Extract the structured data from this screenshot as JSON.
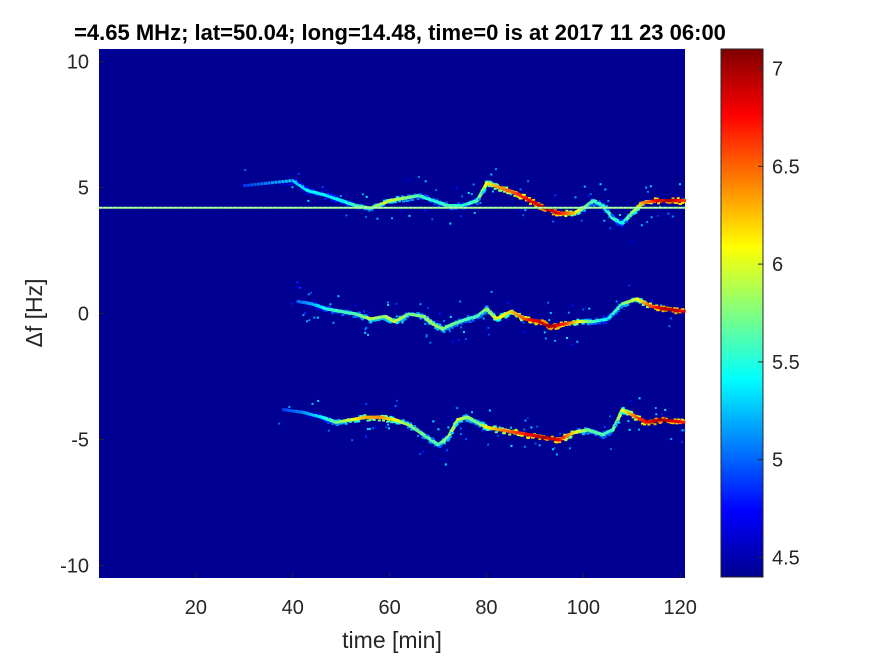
{
  "chart_data": {
    "type": "heatmap",
    "title": "=4.65 MHz;  lat=50.04; long=14.48, time=0 is at 2017 11 23 06:00",
    "xlabel": "time [min]",
    "ylabel": "Δf [Hz]",
    "xlim": [
      0,
      121
    ],
    "ylim": [
      -10.5,
      10.5
    ],
    "x_ticks": [
      {
        "value": 20,
        "label": "20"
      },
      {
        "value": 40,
        "label": "40"
      },
      {
        "value": 60,
        "label": "60"
      },
      {
        "value": 80,
        "label": "80"
      },
      {
        "value": 100,
        "label": "100"
      },
      {
        "value": 120,
        "label": "120"
      }
    ],
    "y_ticks": [
      {
        "value": 10,
        "label": "10"
      },
      {
        "value": 5,
        "label": "5"
      },
      {
        "value": 0,
        "label": "0"
      },
      {
        "value": -5,
        "label": "-5"
      },
      {
        "value": -10,
        "label": "-10"
      }
    ],
    "colorbar": {
      "colormap": "jet",
      "range": [
        4.4,
        7.1
      ],
      "ticks": [
        {
          "value": 4.5,
          "label": "4.5"
        },
        {
          "value": 5,
          "label": "5"
        },
        {
          "value": 5.5,
          "label": "5.5"
        },
        {
          "value": 6,
          "label": "6"
        },
        {
          "value": 6.5,
          "label": "6.5"
        },
        {
          "value": 7,
          "label": "7"
        }
      ]
    },
    "background_value": 4.45,
    "carrier_line": {
      "y": 4.2,
      "x_start": 0,
      "x_end": 121,
      "value": 5.8
    },
    "traces": [
      {
        "name": "upper",
        "points": [
          [
            30,
            5.1
          ],
          [
            40,
            5.3
          ],
          [
            43,
            4.9
          ],
          [
            47,
            4.7
          ],
          [
            50,
            4.5
          ],
          [
            53,
            4.3
          ],
          [
            56,
            4.2
          ],
          [
            60,
            4.5
          ],
          [
            63,
            4.6
          ],
          [
            66,
            4.7
          ],
          [
            69,
            4.5
          ],
          [
            72,
            4.3
          ],
          [
            75,
            4.3
          ],
          [
            78,
            4.5
          ],
          [
            80,
            5.2
          ],
          [
            83,
            5.0
          ],
          [
            86,
            4.8
          ],
          [
            89,
            4.5
          ],
          [
            92,
            4.2
          ],
          [
            95,
            4.0
          ],
          [
            98,
            4.0
          ],
          [
            100,
            4.2
          ],
          [
            102,
            4.5
          ],
          [
            104,
            4.3
          ],
          [
            106,
            3.8
          ],
          [
            108,
            3.6
          ],
          [
            110,
            4.0
          ],
          [
            112,
            4.4
          ],
          [
            115,
            4.5
          ],
          [
            118,
            4.5
          ],
          [
            121,
            4.5
          ]
        ],
        "intensity": [
          4.9,
          5.3,
          5.4,
          5.4,
          5.4,
          5.6,
          5.7,
          6.0,
          5.8,
          5.6,
          5.5,
          5.6,
          5.5,
          5.6,
          6.1,
          6.4,
          6.6,
          6.8,
          7.0,
          6.8,
          6.3,
          5.8,
          5.6,
          5.5,
          5.6,
          5.4,
          5.8,
          6.3,
          6.8,
          7.0,
          6.6
        ]
      },
      {
        "name": "middle",
        "points": [
          [
            41,
            0.5
          ],
          [
            44,
            0.4
          ],
          [
            47,
            0.2
          ],
          [
            50,
            0.1
          ],
          [
            53,
            0.0
          ],
          [
            56,
            -0.2
          ],
          [
            59,
            -0.1
          ],
          [
            61,
            -0.3
          ],
          [
            64,
            0.0
          ],
          [
            67,
            -0.1
          ],
          [
            69,
            -0.4
          ],
          [
            71,
            -0.6
          ],
          [
            73,
            -0.4
          ],
          [
            76,
            -0.2
          ],
          [
            78,
            -0.1
          ],
          [
            80,
            0.2
          ],
          [
            82,
            -0.2
          ],
          [
            85,
            0.1
          ],
          [
            88,
            -0.2
          ],
          [
            91,
            -0.3
          ],
          [
            93,
            -0.5
          ],
          [
            96,
            -0.4
          ],
          [
            99,
            -0.3
          ],
          [
            102,
            -0.3
          ],
          [
            105,
            -0.2
          ],
          [
            108,
            0.4
          ],
          [
            111,
            0.6
          ],
          [
            114,
            0.3
          ],
          [
            117,
            0.2
          ],
          [
            121,
            0.1
          ]
        ],
        "intensity": [
          5.0,
          5.2,
          5.5,
          5.6,
          5.6,
          5.9,
          5.8,
          6.0,
          5.7,
          5.8,
          5.9,
          5.8,
          5.7,
          5.6,
          5.6,
          5.8,
          6.0,
          6.2,
          6.6,
          6.9,
          7.0,
          6.7,
          6.1,
          5.6,
          5.4,
          5.7,
          6.0,
          6.6,
          7.0,
          6.8
        ]
      },
      {
        "name": "lower",
        "points": [
          [
            38,
            -3.8
          ],
          [
            42,
            -3.9
          ],
          [
            46,
            -4.1
          ],
          [
            49,
            -4.3
          ],
          [
            52,
            -4.2
          ],
          [
            55,
            -4.1
          ],
          [
            58,
            -4.1
          ],
          [
            61,
            -4.2
          ],
          [
            64,
            -4.4
          ],
          [
            67,
            -4.8
          ],
          [
            70,
            -5.2
          ],
          [
            72,
            -4.9
          ],
          [
            74,
            -4.2
          ],
          [
            76,
            -4.1
          ],
          [
            78,
            -4.3
          ],
          [
            80,
            -4.5
          ],
          [
            83,
            -4.6
          ],
          [
            86,
            -4.7
          ],
          [
            89,
            -4.8
          ],
          [
            92,
            -4.9
          ],
          [
            95,
            -5.0
          ],
          [
            98,
            -4.7
          ],
          [
            101,
            -4.6
          ],
          [
            104,
            -4.8
          ],
          [
            106,
            -4.6
          ],
          [
            108,
            -3.8
          ],
          [
            110,
            -4.0
          ],
          [
            113,
            -4.3
          ],
          [
            116,
            -4.2
          ],
          [
            121,
            -4.3
          ]
        ],
        "intensity": [
          4.9,
          5.1,
          5.4,
          5.7,
          6.0,
          6.3,
          6.4,
          6.1,
          5.8,
          5.7,
          5.6,
          5.8,
          6.0,
          5.8,
          5.7,
          6.1,
          6.4,
          6.6,
          6.8,
          7.0,
          6.8,
          6.2,
          5.7,
          5.6,
          5.6,
          6.0,
          6.4,
          6.8,
          7.0,
          6.7
        ]
      }
    ]
  }
}
